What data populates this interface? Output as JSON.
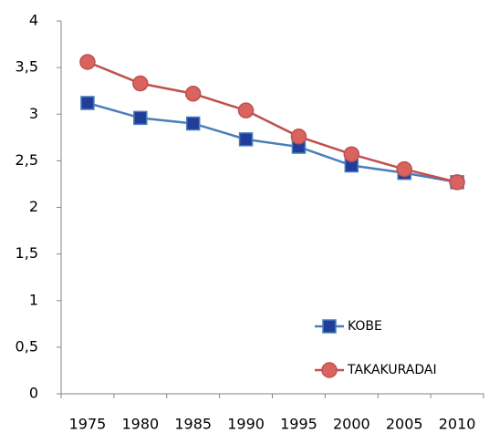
{
  "chart_data": {
    "type": "line",
    "categories": [
      "1975",
      "1980",
      "1985",
      "1990",
      "1995",
      "2000",
      "2005",
      "2010"
    ],
    "series": [
      {
        "name": "KOBE",
        "color": "#4a7ebb",
        "marker": "square",
        "marker_color": "#1f3d99",
        "values": [
          3.12,
          2.96,
          2.9,
          2.73,
          2.65,
          2.45,
          2.37,
          2.27
        ]
      },
      {
        "name": "TAKAKURADAI",
        "color": "#c0504d",
        "marker": "circle",
        "marker_color": "#d9645f",
        "values": [
          3.56,
          3.33,
          3.22,
          3.04,
          2.76,
          2.57,
          2.41,
          2.27
        ]
      }
    ],
    "ylim": [
      0,
      4
    ],
    "yticks": [
      0,
      {
        "value": 0.5,
        "label": "0,5"
      },
      1,
      {
        "value": 1.5,
        "label": "1,5"
      },
      2,
      {
        "value": 2.5,
        "label": "2,5"
      },
      3,
      {
        "value": 3.5,
        "label": "3,5"
      },
      4
    ],
    "grid": false,
    "legend": "lower right"
  }
}
